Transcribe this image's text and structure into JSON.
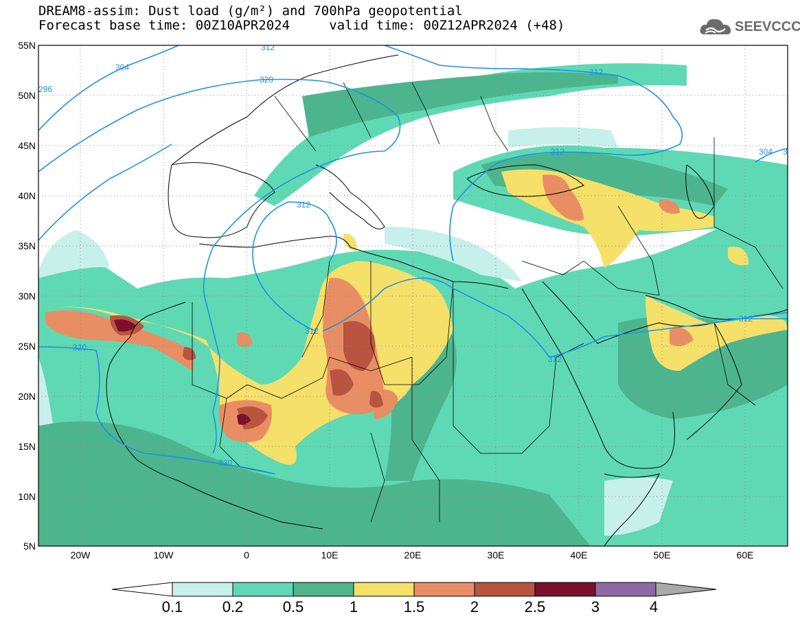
{
  "title": {
    "line1": "DREAM8-assim: Dust load (g/m²) and 700hPa geopotential",
    "line2_left": "Forecast base time: 00Z10APR2024",
    "line2_right": "valid time: 00Z12APR2024 (+48)"
  },
  "logo": {
    "text": "SEEVCCC",
    "icon": "cloud-icon"
  },
  "map": {
    "extent": {
      "lon": [
        -25,
        65
      ],
      "lat": [
        5,
        55
      ]
    },
    "lat_ticks": [
      "55N",
      "50N",
      "45N",
      "40N",
      "35N",
      "30N",
      "25N",
      "20N",
      "15N",
      "10N",
      "5N"
    ],
    "lon_ticks": [
      "20W",
      "10W",
      "0",
      "10E",
      "20E",
      "30E",
      "40E",
      "50E",
      "60E"
    ],
    "grid": true
  },
  "contours": {
    "label_color": "#1e90e6",
    "labels": [
      "312",
      "304",
      "320",
      "296",
      "312",
      "312",
      "312",
      "312",
      "320",
      "312",
      "320",
      "304",
      "312",
      "312"
    ]
  },
  "colorbar": {
    "levels": [
      "0.1",
      "0.2",
      "0.5",
      "1",
      "1.5",
      "2",
      "2.5",
      "3",
      "4"
    ],
    "colors": [
      "#c7f0ea",
      "#5fd9b3",
      "#4db58e",
      "#f5e06a",
      "#e98e64",
      "#b8543f",
      "#7c0f2c",
      "#8f6aa2"
    ],
    "under_color": "#ffffff",
    "over_color": "#a9a9a9"
  }
}
